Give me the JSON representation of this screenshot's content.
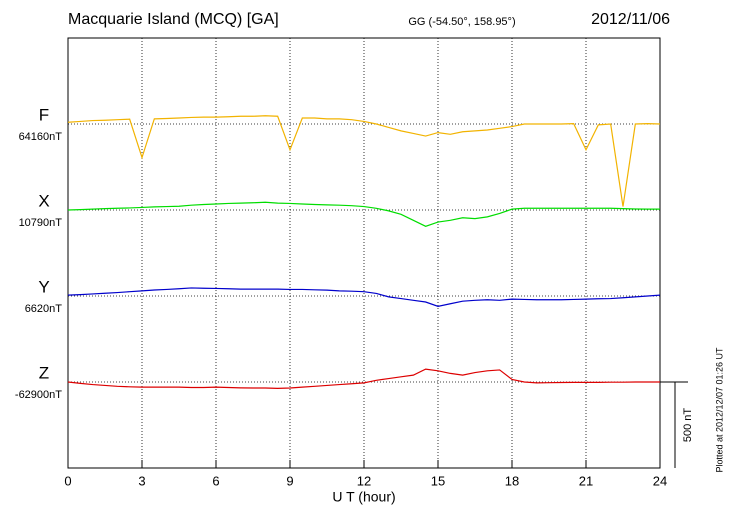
{
  "chart_data": {
    "type": "line",
    "title": "Macquarie Island (MCQ)  [GA]",
    "subtitle": "GG (-54.50°, 158.95°)",
    "date": "2012/11/06",
    "plotted": "Plotted at 2012/12/07 01:26 UT",
    "xlabel": "U T (hour)",
    "xlim": [
      0,
      24
    ],
    "xticks": [
      0,
      3,
      6,
      9,
      12,
      15,
      18,
      21,
      24
    ],
    "grid": true,
    "scale_bar": {
      "value": 500,
      "label": "500 nT"
    },
    "x": [
      0,
      0.5,
      1,
      1.5,
      2,
      2.5,
      3,
      3.5,
      4,
      4.5,
      5,
      5.5,
      6,
      6.5,
      7,
      7.5,
      8,
      8.5,
      9,
      9.5,
      10,
      10.5,
      11,
      11.5,
      12,
      12.5,
      13,
      13.5,
      14,
      14.5,
      15,
      15.5,
      16,
      16.5,
      17,
      17.5,
      18,
      18.5,
      19,
      19.5,
      20,
      20.5,
      21,
      21.5,
      22,
      22.5,
      23,
      23.5,
      24
    ],
    "series": [
      {
        "name": "F",
        "color": "#f2b300",
        "baseline": 64160,
        "baseline_label": "64160nT",
        "values": [
          64170,
          64175,
          64180,
          64182,
          64185,
          64188,
          63965,
          64190,
          64192,
          64195,
          64198,
          64200,
          64200,
          64202,
          64205,
          64205,
          64208,
          64205,
          64010,
          64195,
          64195,
          64190,
          64190,
          64185,
          64175,
          64160,
          64140,
          64120,
          64105,
          64090,
          64110,
          64100,
          64115,
          64120,
          64125,
          64135,
          64145,
          64160,
          64160,
          64160,
          64160,
          64162,
          64010,
          64155,
          64160,
          63680,
          64160,
          64162,
          64160
        ]
      },
      {
        "name": "X",
        "color": "#00dd00",
        "baseline": 10790,
        "baseline_label": "10790nT",
        "values": [
          10790,
          10792,
          10795,
          10798,
          10800,
          10802,
          10805,
          10808,
          10810,
          10812,
          10818,
          10822,
          10825,
          10828,
          10830,
          10832,
          10835,
          10830,
          10828,
          10825,
          10822,
          10820,
          10818,
          10815,
          10810,
          10800,
          10785,
          10765,
          10730,
          10695,
          10720,
          10730,
          10745,
          10740,
          10750,
          10770,
          10795,
          10800,
          10800,
          10800,
          10800,
          10800,
          10800,
          10800,
          10800,
          10798,
          10796,
          10795,
          10795
        ]
      },
      {
        "name": "Y",
        "color": "#0000cc",
        "baseline": 6620,
        "baseline_label": "6620nT",
        "values": [
          6625,
          6628,
          6632,
          6636,
          6640,
          6645,
          6650,
          6655,
          6658,
          6662,
          6667,
          6665,
          6664,
          6662,
          6660,
          6660,
          6660,
          6660,
          6658,
          6658,
          6656,
          6654,
          6650,
          6648,
          6645,
          6635,
          6615,
          6605,
          6595,
          6585,
          6560,
          6575,
          6590,
          6595,
          6598,
          6595,
          6602,
          6600,
          6598,
          6598,
          6598,
          6600,
          6602,
          6604,
          6605,
          6610,
          6615,
          6620,
          6625
        ]
      },
      {
        "name": "Z",
        "color": "#dd0000",
        "baseline": -62900,
        "baseline_label": "-62900nT",
        "values": [
          -62900,
          -62908,
          -62915,
          -62920,
          -62925,
          -62928,
          -62930,
          -62930,
          -62930,
          -62930,
          -62932,
          -62932,
          -62930,
          -62932,
          -62934,
          -62935,
          -62935,
          -62937,
          -62935,
          -62930,
          -62925,
          -62920,
          -62915,
          -62910,
          -62905,
          -62890,
          -62880,
          -62870,
          -62860,
          -62825,
          -62835,
          -62850,
          -62860,
          -62845,
          -62835,
          -62830,
          -62885,
          -62900,
          -62905,
          -62904,
          -62903,
          -62902,
          -62902,
          -62902,
          -62901,
          -62901,
          -62900,
          -62900,
          -62900
        ]
      }
    ]
  }
}
